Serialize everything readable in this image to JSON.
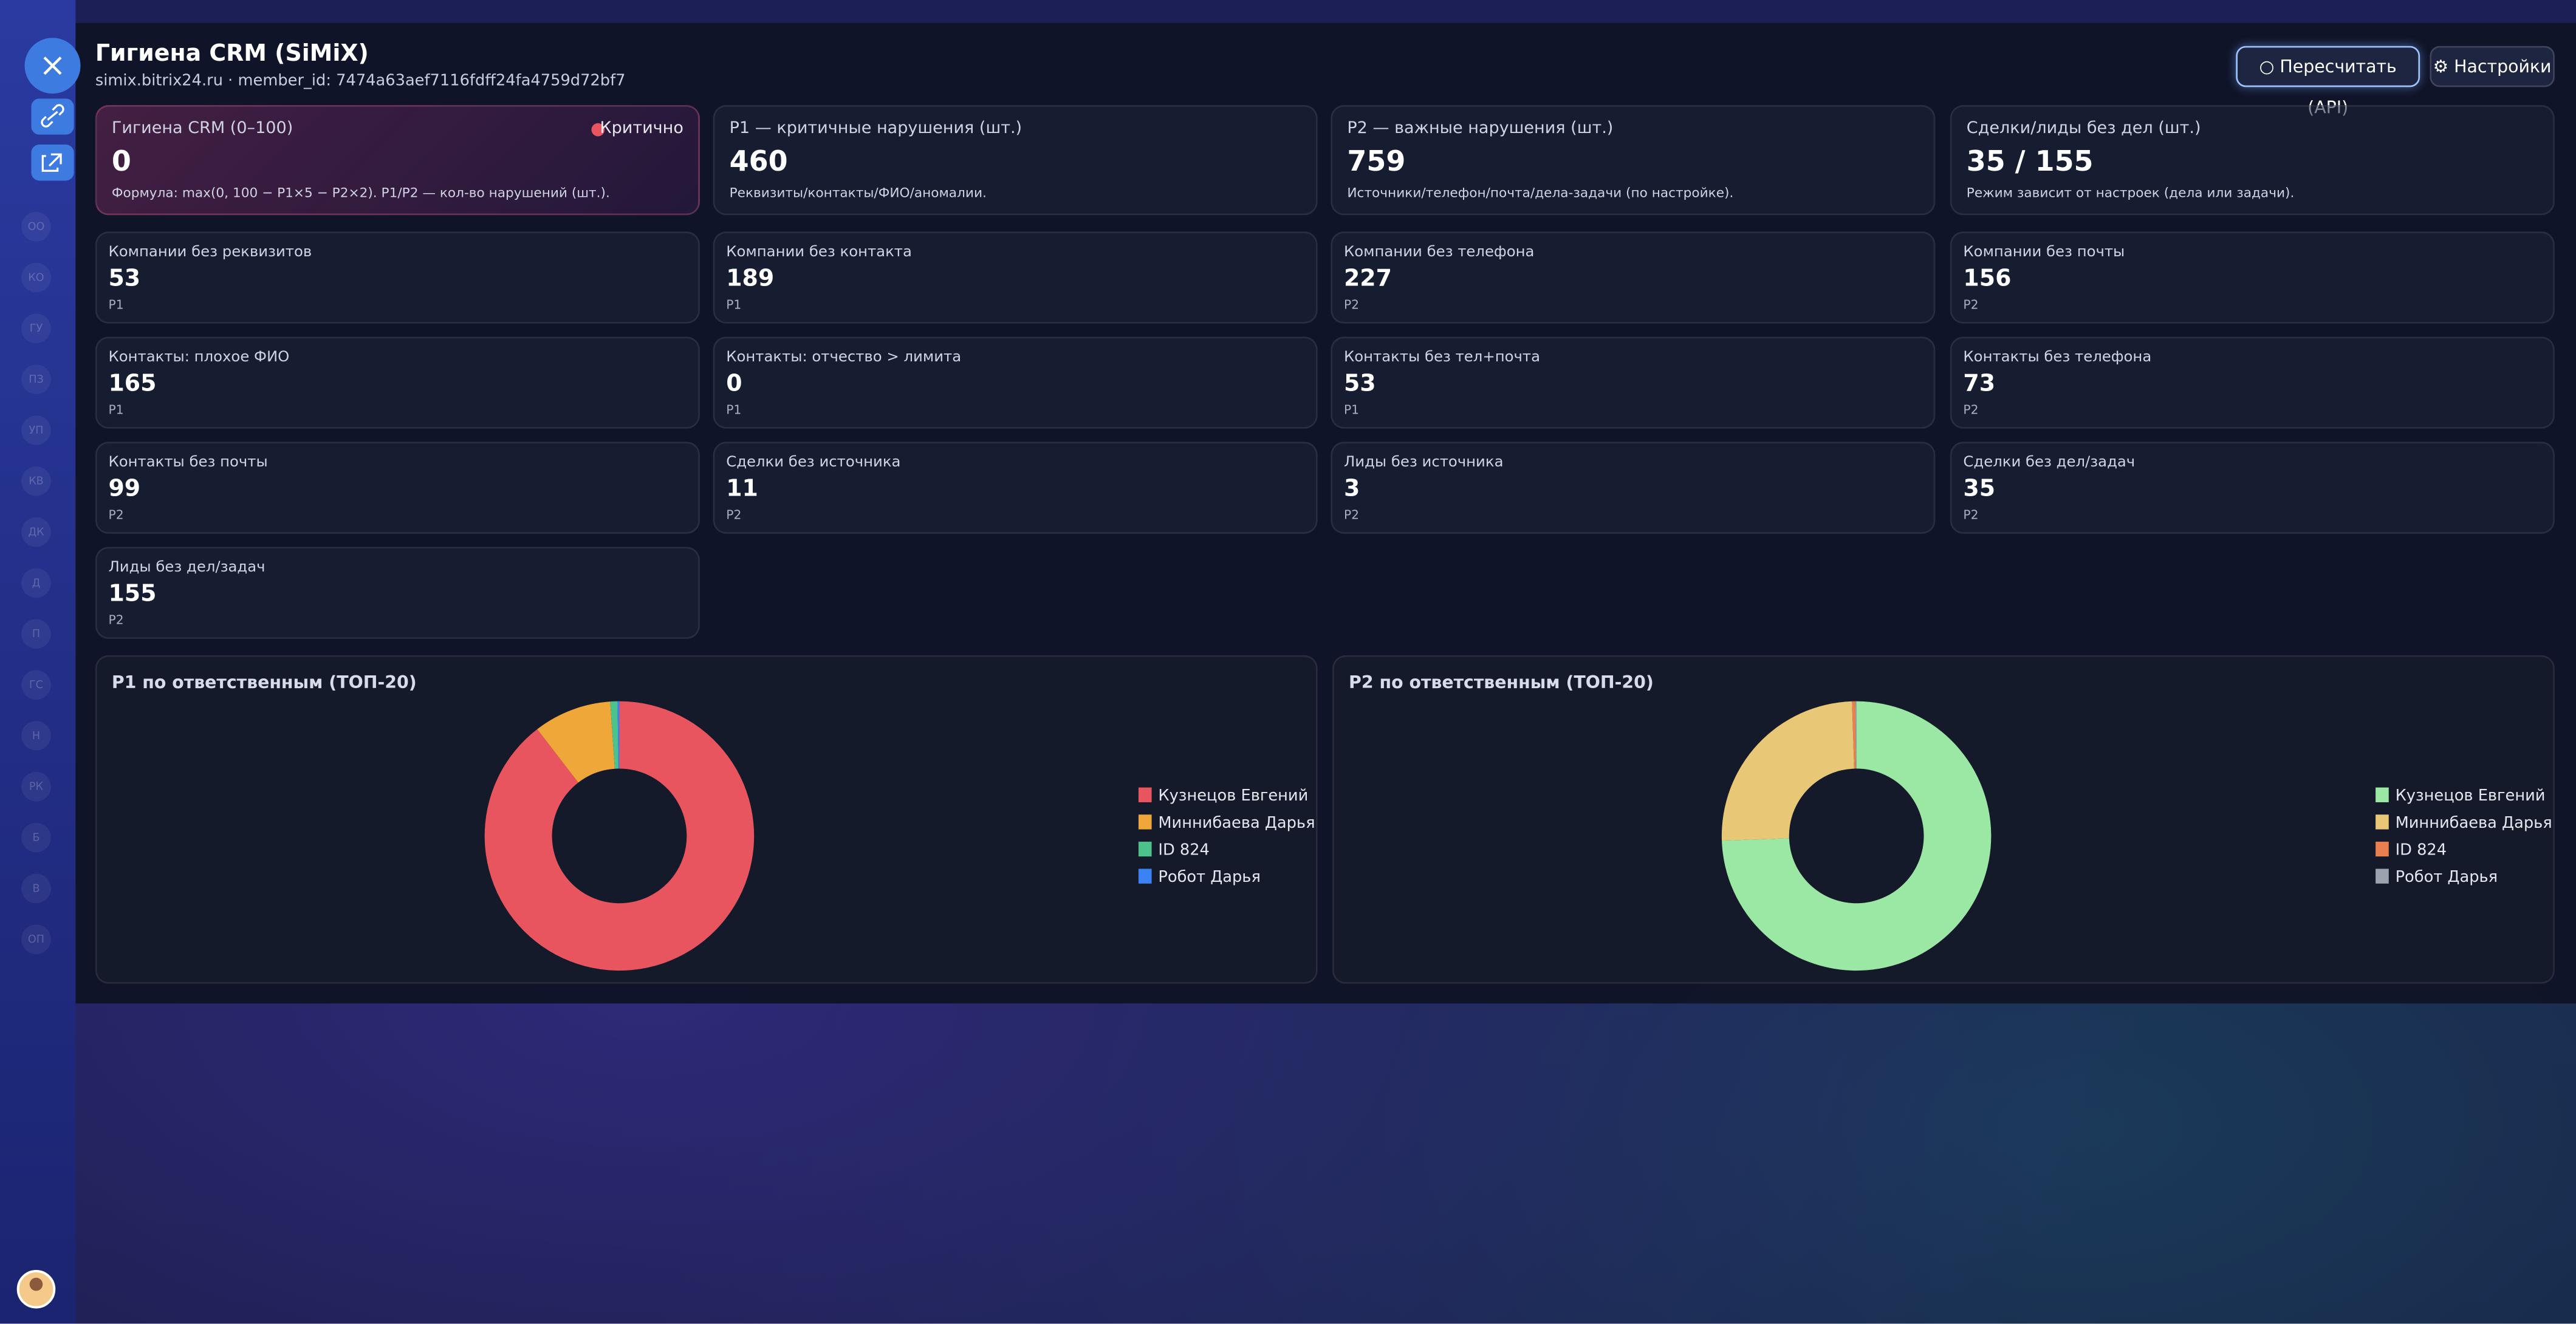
{
  "header": {
    "title": "Гигиена CRM (SiMiX)",
    "subtitle": "simix.bitrix24.ru · member_id: 7474a63aef7116fdff24fa4759d72bf7"
  },
  "buttons": [
    "Пересчитать (API)",
    "Настройки"
  ],
  "sidebar": [
    "ОО",
    "КО",
    "ГУ",
    "ПЗ",
    "УП",
    "КВ",
    "ДК",
    "Д",
    "П",
    "ГС",
    "Н",
    "РК",
    "Б",
    "В",
    "ОП"
  ],
  "kpis": [
    {
      "label": "Гигиена CRM (0–100)",
      "status": "Критично",
      "value": 0,
      "note": "Формула: max(0, 100 − P1×5 − P2×2). P1/P2 — кол-во нарушений (шт.)."
    },
    {
      "label": "P1 — критичные нарушения (шт.)",
      "value": 460,
      "note": "Реквизиты/контакты/ФИО/аномалии."
    },
    {
      "label": "P2 — важные нарушения (шт.)",
      "value": 759,
      "note": "Источники/телефон/почта/дела-задачи (по настройке)."
    },
    {
      "label": "Сделки/лиды без дел (шт.)",
      "value": "35 / 155",
      "note": "Режим зависит от настроек (дела или задачи)."
    }
  ],
  "metrics": [
    {
      "label": "Компании без реквизитов",
      "value": 53,
      "priority": "P1"
    },
    {
      "label": "Компании без контакта",
      "value": 189,
      "priority": "P1"
    },
    {
      "label": "Компании без телефона",
      "value": 227,
      "priority": "P2"
    },
    {
      "label": "Компании без почты",
      "value": 156,
      "priority": "P2"
    },
    {
      "label": "Контакты: плохое ФИО",
      "value": 165,
      "priority": "P1"
    },
    {
      "label": "Контакты: отчество > лимита",
      "value": 0,
      "priority": "P1"
    },
    {
      "label": "Контакты без тел+почта",
      "value": 53,
      "priority": "P1"
    },
    {
      "label": "Контакты без телефона",
      "value": 73,
      "priority": "P2"
    },
    {
      "label": "Контакты без почты",
      "value": 99,
      "priority": "P2"
    },
    {
      "label": "Сделки без источника",
      "value": 11,
      "priority": "P2"
    },
    {
      "label": "Лиды без источника",
      "value": 3,
      "priority": "P2"
    },
    {
      "label": "Сделки без дел/задач",
      "value": 35,
      "priority": "P2"
    },
    {
      "label": "Лиды без дел/задач",
      "value": 155,
      "priority": "P2"
    }
  ],
  "chart_data": [
    {
      "type": "pie",
      "donut": true,
      "title": "P1 по ответственным (ТОП-20)",
      "categories": [
        "Кузнецов Евгений",
        "Миннибаева Дарья",
        "ID 824",
        "Робот Дарья"
      ],
      "values": [
        412,
        43,
        4,
        1
      ],
      "colors": [
        "#e8555f",
        "#f0a73a",
        "#4cc38a",
        "#3b82f6"
      ]
    },
    {
      "type": "pie",
      "donut": true,
      "title": "P2 по ответственным (ТОП-20)",
      "categories": [
        "Кузнецов Евгений",
        "Миннибаева Дарья",
        "ID 824",
        "Робот Дарья"
      ],
      "values": [
        565,
        190,
        3,
        1
      ],
      "colors": [
        "#9be8a4",
        "#e8c877",
        "#e8804f",
        "#9ca3af"
      ]
    }
  ]
}
